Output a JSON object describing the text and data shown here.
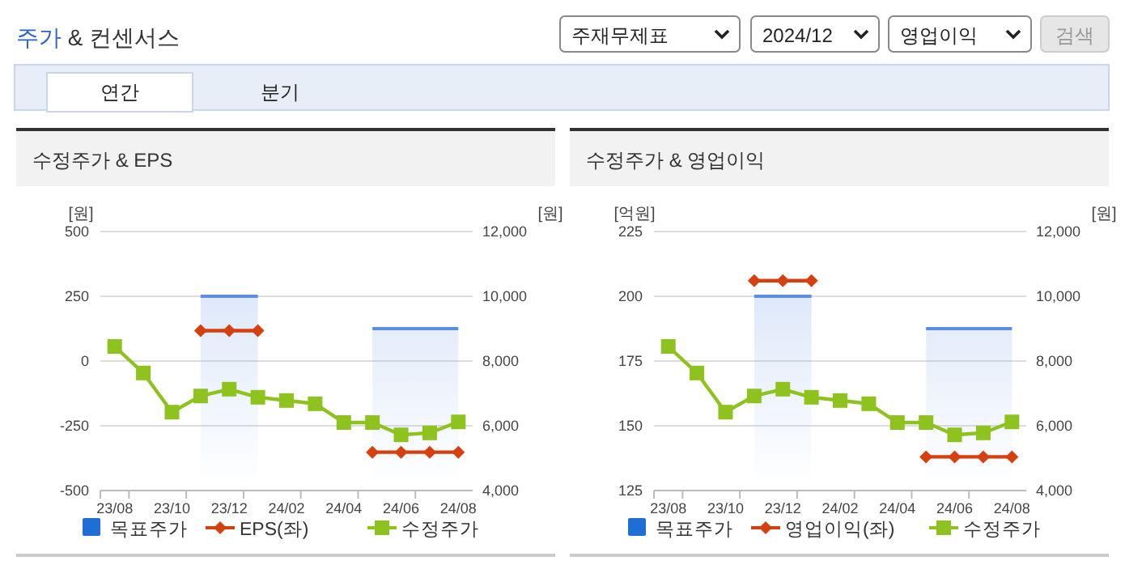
{
  "chart_data": [
    {
      "type": "other",
      "title": "주가 & 컨센서스",
      "annotations": [
        "주재무제표",
        "2024/12",
        "영업이익",
        "검색",
        "연간",
        "분기"
      ]
    },
    {
      "type": "line",
      "title": "수정주가 & EPS",
      "ylabel": "[원]",
      "y2label": "[원]",
      "categories": [
        "23/08",
        null,
        "23/10",
        null,
        "23/12",
        null,
        "24/02",
        null,
        "24/04",
        null,
        "24/06",
        null,
        "24/08"
      ],
      "ylim": [
        -500,
        500
      ],
      "yticks": [
        -500,
        -250,
        0,
        250,
        500
      ],
      "y2lim": [
        4000,
        12000
      ],
      "y2ticks": [
        {
          "value": 4000,
          "label": "4,000"
        },
        {
          "value": 6000,
          "label": "6,000"
        },
        {
          "value": 8000,
          "label": "8,000"
        },
        {
          "value": 10000,
          "label": "10,000"
        },
        {
          "value": 12000,
          "label": "12,000"
        }
      ],
      "grid": "y",
      "legend": "bottom",
      "series": [
        {
          "name": "목표주가",
          "type": "area",
          "axis": "y2",
          "color": "#5b8ee0",
          "marker": "none",
          "values": [
            null,
            null,
            null,
            10000,
            10000,
            10000,
            null,
            null,
            null,
            9000,
            9000,
            9000,
            9000
          ]
        },
        {
          "name": "EPS(좌)",
          "type": "line",
          "axis": "y",
          "color": "#d6400f",
          "marker": "diamond",
          "values": [
            null,
            null,
            null,
            117,
            117,
            117,
            null,
            null,
            null,
            -352,
            -352,
            -352,
            -352
          ]
        },
        {
          "name": "수정주가",
          "type": "line",
          "axis": "y2",
          "color": "#8dc21f",
          "marker": "square",
          "values": [
            8450,
            7630,
            6420,
            6920,
            7130,
            6880,
            6780,
            6680,
            6100,
            6100,
            5720,
            5780,
            6120
          ]
        }
      ]
    },
    {
      "type": "line",
      "title": "수정주가 & 영업이익",
      "ylabel": "[억원]",
      "y2label": "[원]",
      "categories": [
        "23/08",
        null,
        "23/10",
        null,
        "23/12",
        null,
        "24/02",
        null,
        "24/04",
        null,
        "24/06",
        null,
        "24/08"
      ],
      "ylim": [
        125,
        225
      ],
      "yticks": [
        125,
        150,
        175,
        200,
        225
      ],
      "y2lim": [
        4000,
        12000
      ],
      "y2ticks": [
        {
          "value": 4000,
          "label": "4,000"
        },
        {
          "value": 6000,
          "label": "6,000"
        },
        {
          "value": 8000,
          "label": "8,000"
        },
        {
          "value": 10000,
          "label": "10,000"
        },
        {
          "value": 12000,
          "label": "12,000"
        }
      ],
      "grid": "y",
      "legend": "bottom",
      "series": [
        {
          "name": "목표주가",
          "type": "area",
          "axis": "y2",
          "color": "#5b8ee0",
          "marker": "none",
          "values": [
            null,
            null,
            null,
            10000,
            10000,
            10000,
            null,
            null,
            null,
            9000,
            9000,
            9000,
            9000
          ]
        },
        {
          "name": "영업이익(좌)",
          "type": "line",
          "axis": "y",
          "color": "#d6400f",
          "marker": "diamond",
          "values": [
            null,
            null,
            null,
            206,
            206,
            206,
            null,
            null,
            null,
            138,
            138,
            138,
            138
          ]
        },
        {
          "name": "수정주가",
          "type": "line",
          "axis": "y2",
          "color": "#8dc21f",
          "marker": "square",
          "values": [
            8450,
            7630,
            6420,
            6920,
            7130,
            6880,
            6780,
            6680,
            6100,
            6100,
            5720,
            5780,
            6120
          ]
        }
      ]
    }
  ]
}
